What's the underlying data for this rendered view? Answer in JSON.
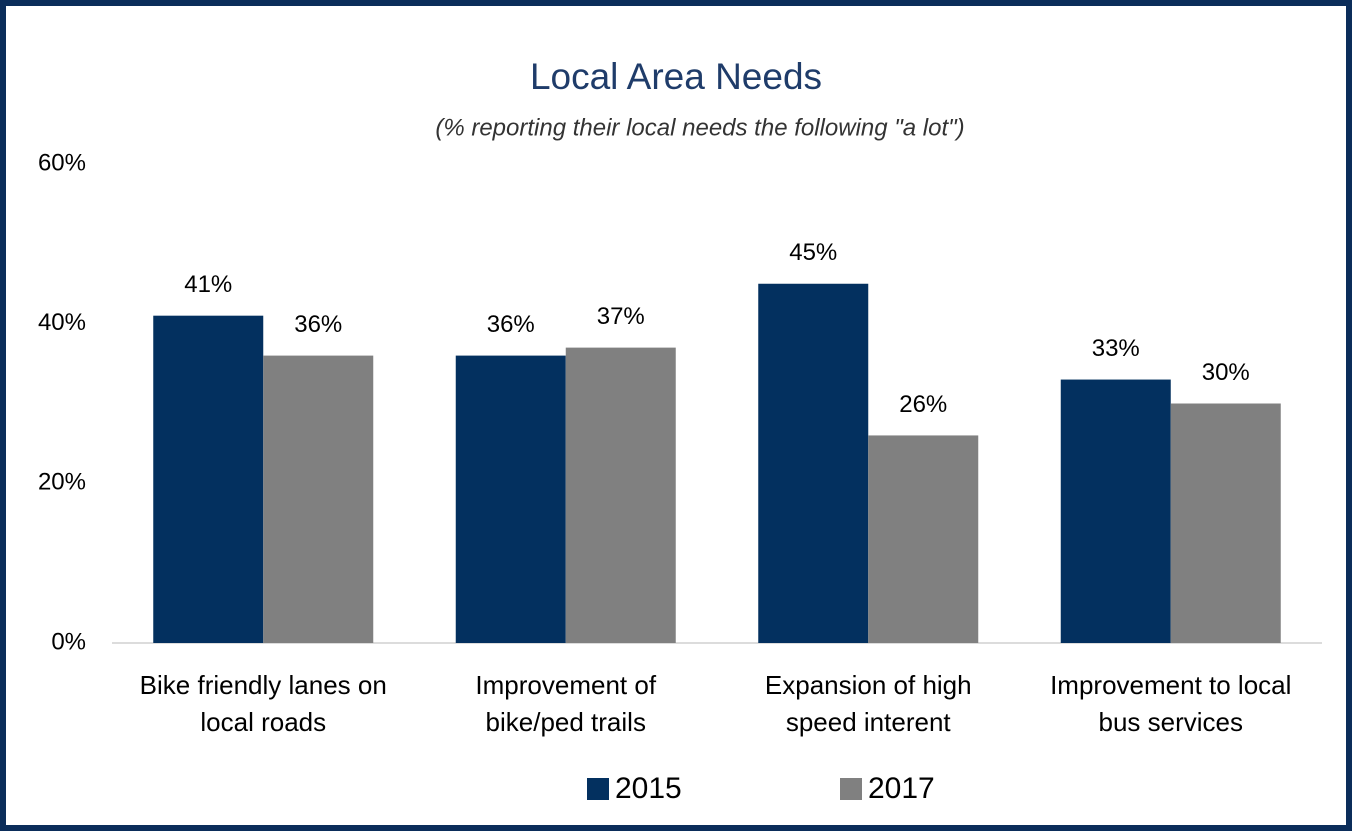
{
  "chart_data": {
    "type": "bar",
    "title": "Local Area Needs",
    "subtitle": "(% reporting their local needs the following \"a lot\")",
    "categories": [
      "Bike friendly lanes on\nlocal roads",
      "Improvement of\nbike/ped trails",
      "Expansion of high\nspeed interent",
      "Improvement to local\nbus services"
    ],
    "series": [
      {
        "name": "2015",
        "color": "#03305f",
        "values": [
          41,
          36,
          45,
          33
        ],
        "value_labels": [
          "41%",
          "36%",
          "45%",
          "33%"
        ]
      },
      {
        "name": "2017",
        "color": "#808080",
        "values": [
          36,
          37,
          26,
          30
        ],
        "value_labels": [
          "36%",
          "37%",
          "26%",
          "30%"
        ]
      }
    ],
    "ylim": [
      0,
      60
    ],
    "yticks": [
      {
        "value": 0,
        "label": "0%"
      },
      {
        "value": 20,
        "label": "20%"
      },
      {
        "value": 40,
        "label": "40%"
      },
      {
        "value": 60,
        "label": "60%"
      }
    ],
    "grid": false,
    "legend": "bottom"
  }
}
